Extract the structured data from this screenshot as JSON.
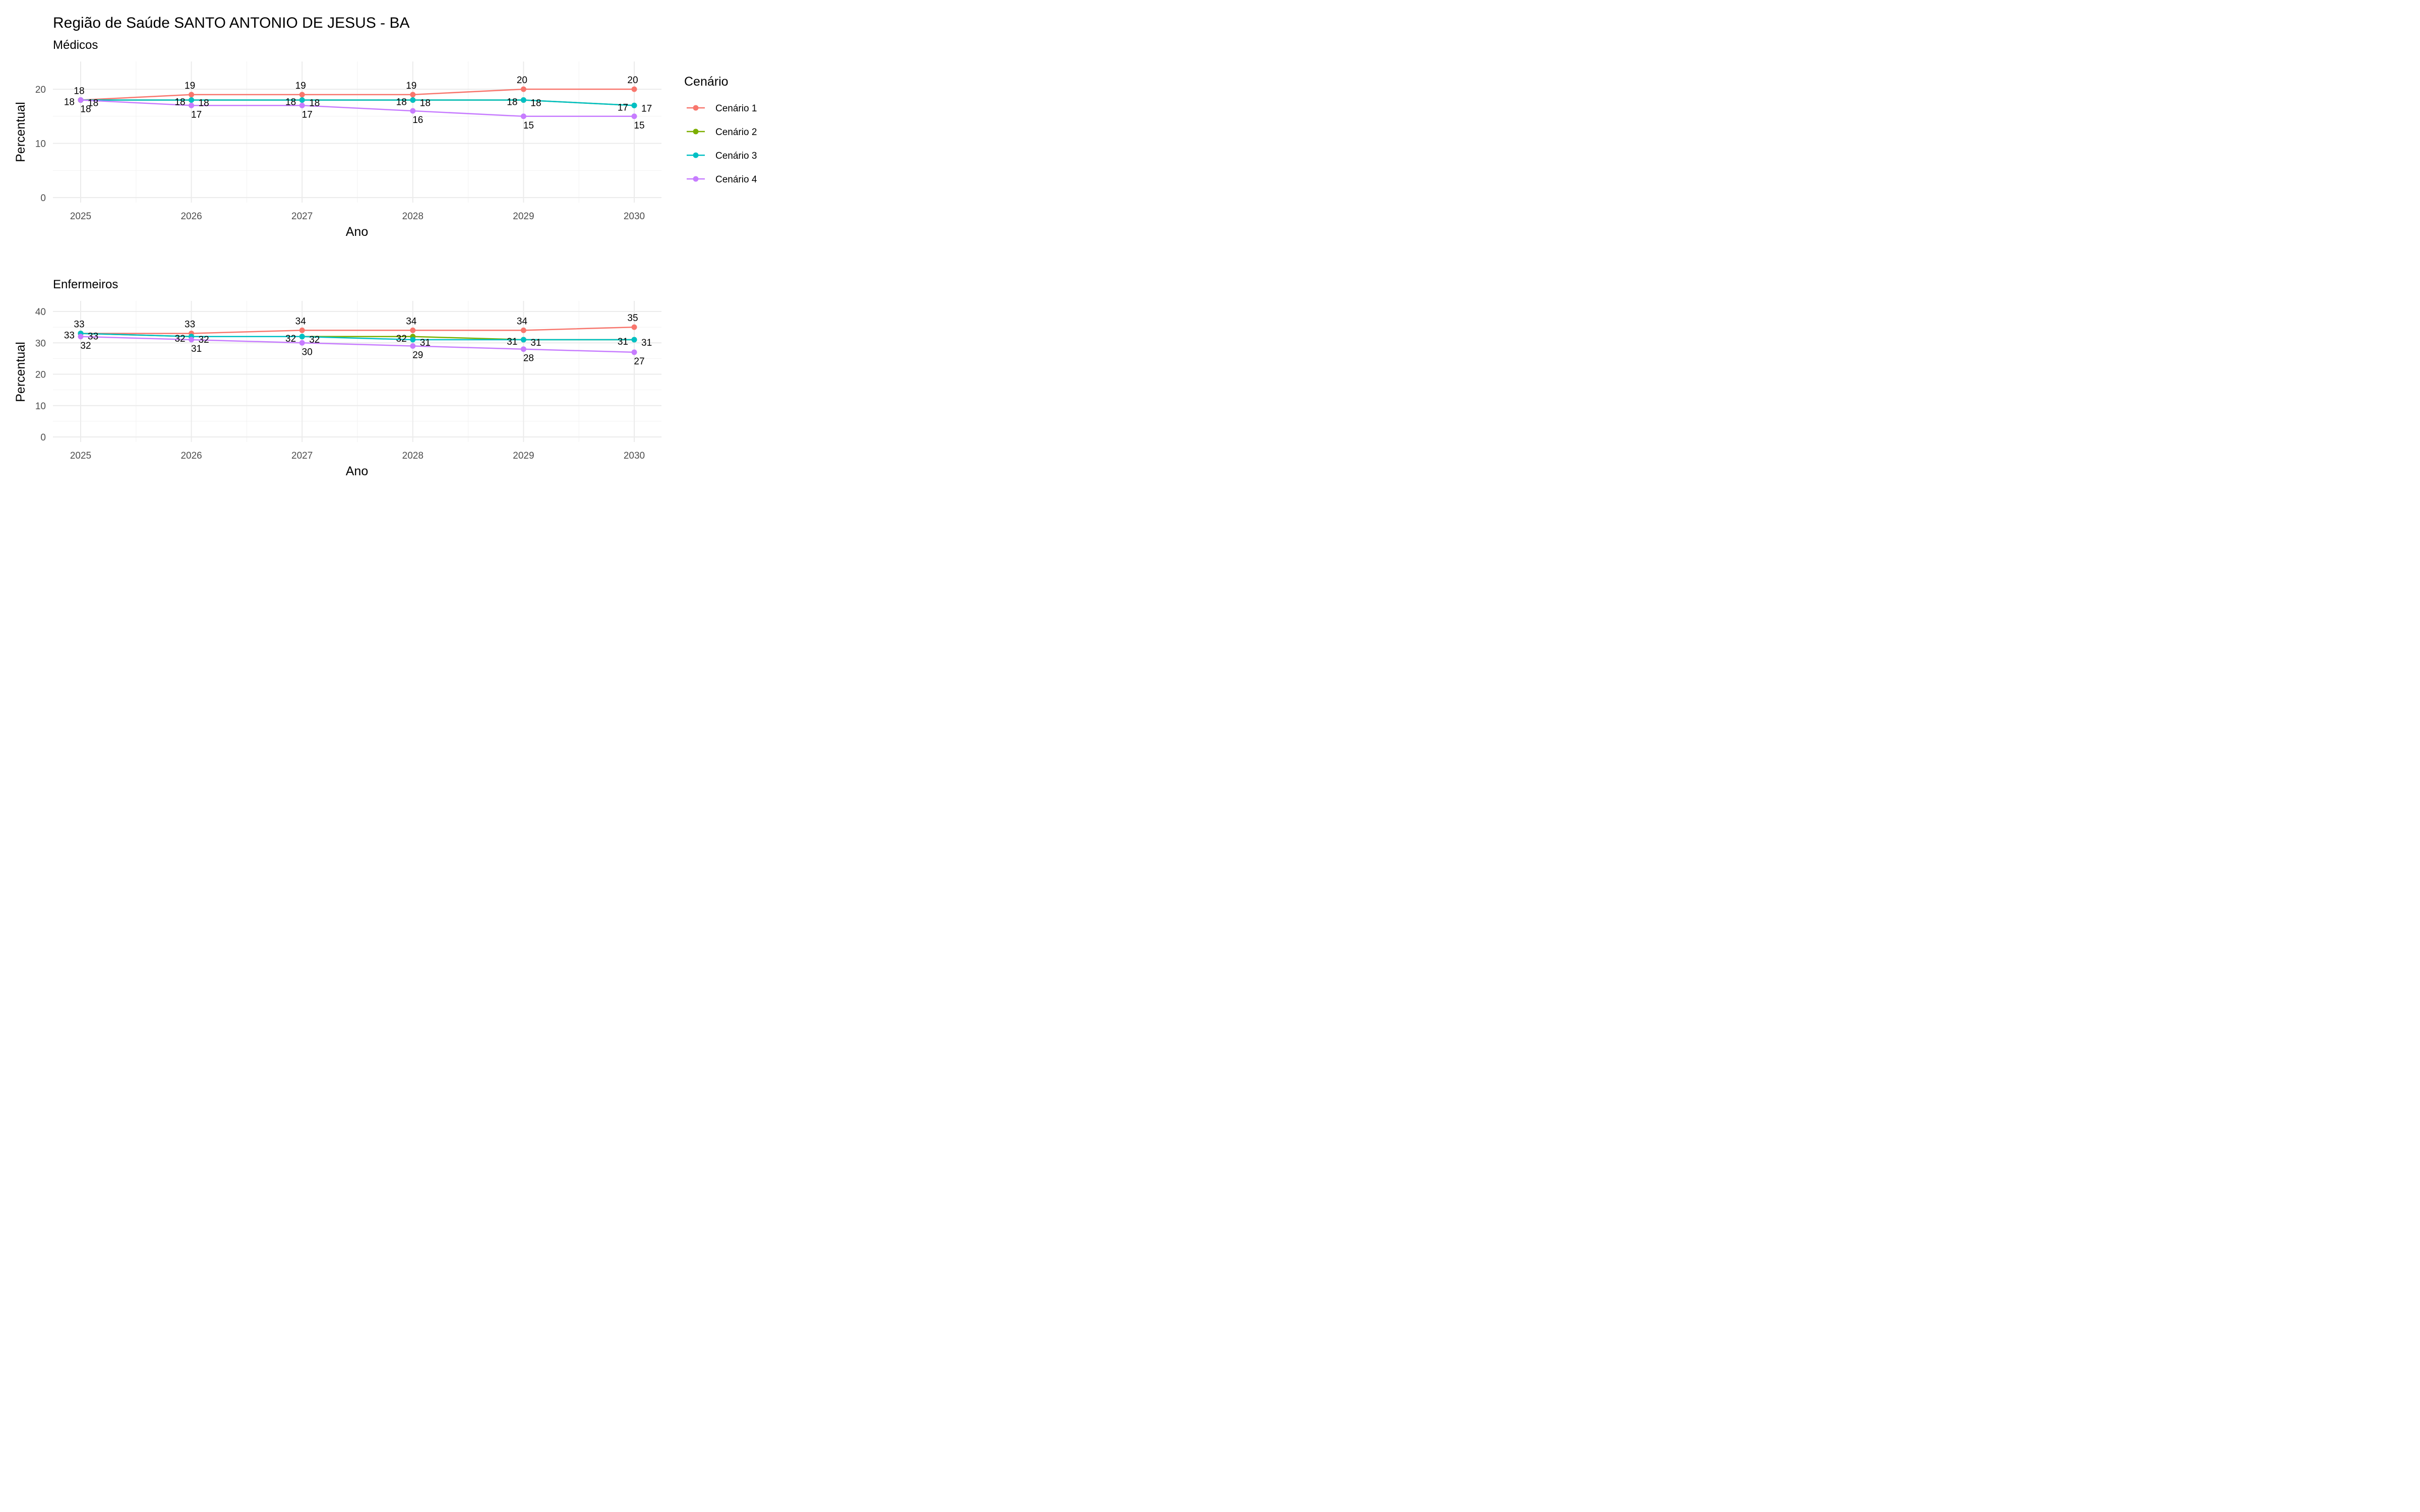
{
  "chart_data": {
    "type": "line",
    "title": "Região de Saúde SANTO ANTONIO DE JESUS - BA",
    "xlabel": "Ano",
    "ylabel": "Percentual",
    "categories": [
      "2025",
      "2026",
      "2027",
      "2028",
      "2029",
      "2030"
    ],
    "grid": true,
    "legend": {
      "title": "Cenário",
      "position": "right",
      "entries": [
        {
          "name": "Cenário 1",
          "color": "#F8766D"
        },
        {
          "name": "Cenário 2",
          "color": "#7CAE00"
        },
        {
          "name": "Cenário 3",
          "color": "#00BFC4"
        },
        {
          "name": "Cenário 4",
          "color": "#C77CFF"
        }
      ]
    },
    "panels": [
      {
        "subtitle": "Médicos",
        "ylim": [
          0,
          24
        ],
        "yticks": [
          0,
          10,
          20
        ],
        "series": [
          {
            "name": "Cenário 1",
            "values": [
              18,
              19,
              19,
              19,
              20,
              20
            ]
          },
          {
            "name": "Cenário 2",
            "values": [
              18,
              18,
              18,
              18,
              18,
              17
            ]
          },
          {
            "name": "Cenário 3",
            "values": [
              18,
              18,
              18,
              18,
              18,
              17
            ]
          },
          {
            "name": "Cenário 4",
            "values": [
              18,
              17,
              17,
              16,
              15,
              15
            ]
          }
        ]
      },
      {
        "subtitle": "Enfermeiros",
        "ylim": [
          0,
          42
        ],
        "yticks": [
          0,
          10,
          20,
          30,
          40
        ],
        "series": [
          {
            "name": "Cenário 1",
            "values": [
              33,
              33,
              34,
              34,
              34,
              35
            ]
          },
          {
            "name": "Cenário 2",
            "values": [
              33,
              32,
              32,
              32,
              31,
              31
            ]
          },
          {
            "name": "Cenário 3",
            "values": [
              33,
              32,
              32,
              31,
              31,
              31
            ]
          },
          {
            "name": "Cenário 4",
            "values": [
              32,
              31,
              30,
              29,
              28,
              27
            ]
          }
        ]
      }
    ]
  }
}
